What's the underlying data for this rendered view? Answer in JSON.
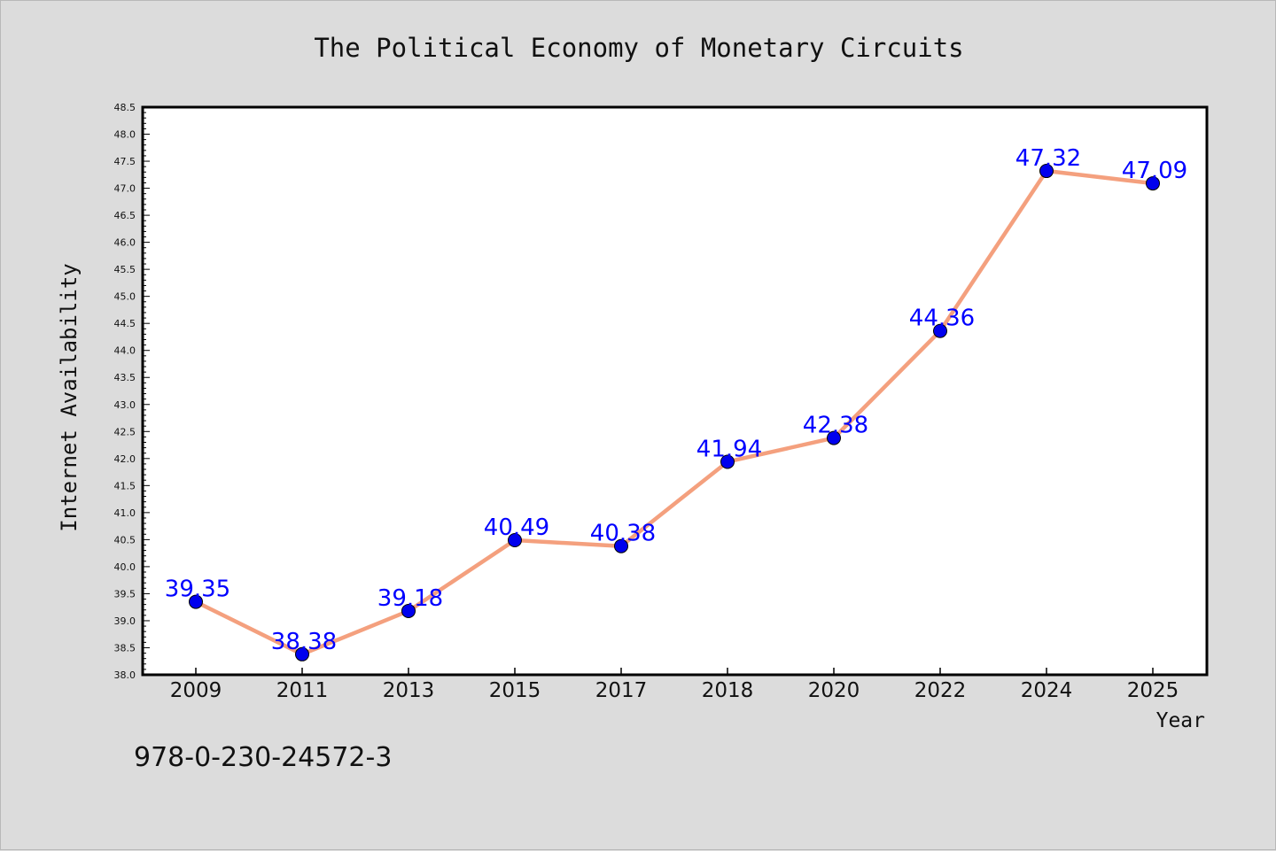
{
  "chart_data": {
    "type": "line",
    "title": "The Political Economy of Monetary Circuits",
    "xlabel": "Year",
    "ylabel": "Internet Availability",
    "categories": [
      "2009",
      "2011",
      "2013",
      "2015",
      "2017",
      "2018",
      "2020",
      "2022",
      "2024",
      "2025"
    ],
    "values": [
      39.35,
      38.38,
      39.18,
      40.49,
      40.38,
      41.94,
      42.38,
      44.36,
      47.32,
      47.09
    ],
    "data_labels": [
      "39.35",
      "38.38",
      "39.18",
      "40.49",
      "40.38",
      "41.94",
      "42.38",
      "44.36",
      "47.32",
      "47.09"
    ],
    "ylim": [
      38.0,
      48.5
    ],
    "ytick_step": 0.5,
    "ytick_labels": [
      "38.0",
      "38.5",
      "39.0",
      "39.5",
      "40.0",
      "40.5",
      "41.0",
      "41.5",
      "42.0",
      "42.5",
      "43.0",
      "43.5",
      "44.0",
      "44.5",
      "45.0",
      "45.5",
      "46.0",
      "46.5",
      "47.0",
      "47.5",
      "48.0",
      "48.5"
    ],
    "grid": false,
    "line_color": "#f4a07e",
    "marker_color": "#0000ee",
    "label_color": "#0000ff"
  },
  "footer": {
    "isbn": "978-0-230-24572-3"
  }
}
